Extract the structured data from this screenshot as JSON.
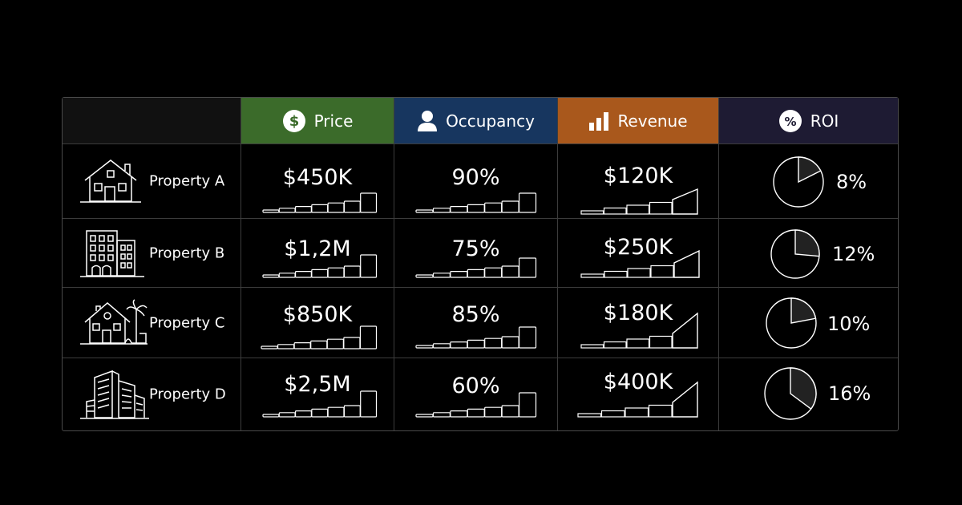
{
  "colors": {
    "price": "#3b6b2a",
    "occupancy": "#17365f",
    "revenue": "#a9581c",
    "roi": "#1e1b33"
  },
  "headers": {
    "price": {
      "label": "Price",
      "icon": "dollar-circle-icon"
    },
    "occupancy": {
      "label": "Occupancy",
      "icon": "person-icon"
    },
    "revenue": {
      "label": "Revenue",
      "icon": "bar-chart-icon"
    },
    "roi": {
      "label": "ROI",
      "icon": "percent-circle-icon"
    }
  },
  "rows": [
    {
      "name": "Property A",
      "icon": "house-icon",
      "price": "$450K",
      "occupancy": "90%",
      "occupancy_value": 0.9,
      "revenue": "$120K",
      "roi": "8%",
      "roi_value": 0.08
    },
    {
      "name": "Property B",
      "icon": "apartment-building-icon",
      "price": "$1,2M",
      "occupancy": "75%",
      "occupancy_value": 0.75,
      "revenue": "$250K",
      "roi": "12%",
      "roi_value": 0.12
    },
    {
      "name": "Property C",
      "icon": "villa-icon",
      "price": "$850K",
      "occupancy": "85%",
      "occupancy_value": 0.85,
      "revenue": "$180K",
      "roi": "10%",
      "roi_value": 0.1
    },
    {
      "name": "Property D",
      "icon": "skyscraper-icon",
      "price": "$2,5M",
      "occupancy": "60%",
      "occupancy_value": 0.6,
      "revenue": "$400K",
      "roi": "16%",
      "roi_value": 0.16
    }
  ]
}
